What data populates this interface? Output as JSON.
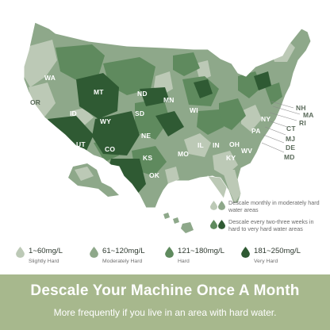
{
  "colors": {
    "slightly_hard": "#bcc9b6",
    "moderately_hard": "#8ea88a",
    "hard": "#5f8a5e",
    "very_hard": "#2f5a33",
    "banner": "#a7b88d"
  },
  "states": {
    "WA": "WA",
    "OR": "OR",
    "ID": "ID",
    "MT": "MT",
    "WY": "WY",
    "UT": "UT",
    "CO": "CO",
    "ND": "ND",
    "SD": "SD",
    "NE": "NE",
    "KS": "KS",
    "OK": "OK",
    "MN": "MN",
    "WI": "WI",
    "MO": "MO",
    "IL": "IL",
    "IN": "IN",
    "OH": "OH",
    "KY": "KY",
    "WV": "WV",
    "PA": "PA",
    "NY": "NY",
    "NH": "NH",
    "MA": "MA",
    "RI": "RI",
    "CT": "CT",
    "MJ": "MJ",
    "DE": "DE",
    "MD": "MD"
  },
  "callouts": {
    "monthly": "Descale monthly in moderately hard water areas",
    "two_three_weeks": "Descale every two-three weeks in hard to very hard water areas"
  },
  "legend": [
    {
      "range": "1~60mg/L",
      "label": "Slightly Hard",
      "color": "#bcc9b6"
    },
    {
      "range": "61~120mg/L",
      "label": "Moderately Hard",
      "color": "#8ea88a"
    },
    {
      "range": "121~180mg/L",
      "label": "Hard",
      "color": "#5f8a5e"
    },
    {
      "range": "181~250mg/L",
      "label": "Very Hard",
      "color": "#2f5a33"
    }
  ],
  "banner": {
    "heading": "Descale Your Machine Once A Month",
    "subheading": "More frequently if you live in an area with hard water."
  }
}
